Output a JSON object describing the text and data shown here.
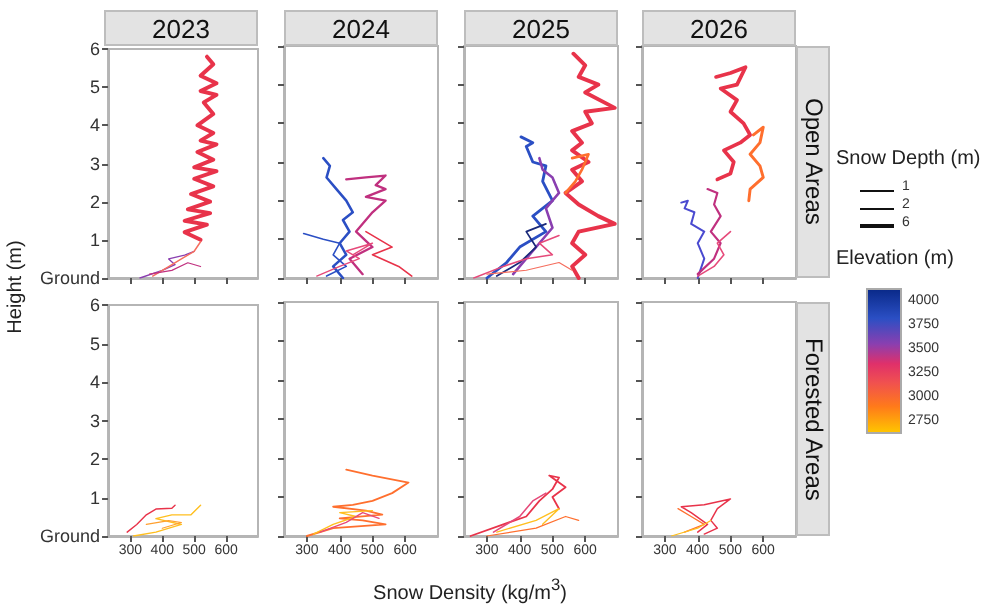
{
  "chart_data": [
    {
      "type": "line",
      "title": "2023",
      "ylabel": "Height (m)",
      "xlim": [
        230,
        700
      ],
      "xticks": [
        300,
        400,
        500,
        600
      ],
      "ylim": [
        0,
        6
      ],
      "yticks": [
        {
          "value": 0,
          "label": "Ground"
        },
        1,
        2,
        3,
        4,
        5,
        6
      ],
      "tick_labels": "y",
      "series": [
        {
          "color": "#e8334a",
          "x": [
            540,
            560,
            520,
            570,
            520,
            570,
            530,
            560,
            510,
            560,
            520,
            570,
            510,
            560,
            500,
            570,
            500,
            560,
            490,
            550,
            480,
            550,
            470,
            540,
            470,
            520
          ],
          "values": [
            5.8,
            5.6,
            5.3,
            5.1,
            4.9,
            4.8,
            4.6,
            4.3,
            4.0,
            3.8,
            3.6,
            3.5,
            3.3,
            3.1,
            2.9,
            2.8,
            2.6,
            2.4,
            2.2,
            2.0,
            1.8,
            1.7,
            1.5,
            1.4,
            1.2,
            1.0
          ]
        },
        {
          "color": "#8a3fb0",
          "x": [
            330,
            400,
            440,
            420,
            470,
            500
          ],
          "values": [
            0,
            0.2,
            0.35,
            0.5,
            0.6,
            0.7
          ]
        },
        {
          "color": "#f56e5e",
          "x": [
            370,
            420,
            460,
            500,
            520
          ],
          "values": [
            0.05,
            0.3,
            0.5,
            0.7,
            0.95
          ]
        },
        {
          "color": "#c0307f",
          "x": [
            360,
            430,
            480,
            520
          ],
          "values": [
            0.1,
            0.2,
            0.4,
            0.3
          ]
        }
      ]
    },
    {
      "type": "line",
      "title": "2024",
      "xlim": [
        230,
        700
      ],
      "xticks": [
        300,
        400,
        500,
        600
      ],
      "ylim": [
        0,
        6
      ],
      "yticks": [
        0,
        1,
        2,
        3,
        4,
        5,
        6
      ],
      "tick_labels": false,
      "series": [
        {
          "color": "#2b4fc4",
          "x": [
            350,
            370,
            360,
            390,
            420,
            440,
            410,
            430,
            400,
            420,
            380,
            410
          ],
          "values": [
            3.1,
            2.9,
            2.6,
            2.3,
            2.0,
            1.7,
            1.5,
            1.2,
            0.9,
            0.6,
            0.3,
            0
          ]
        },
        {
          "color": "#c0307f",
          "x": [
            420,
            480,
            540,
            510,
            540,
            480,
            540,
            500,
            450,
            500,
            430,
            470
          ],
          "values": [
            2.55,
            2.6,
            2.65,
            2.4,
            2.3,
            2.1,
            2.0,
            1.7,
            1.2,
            0.8,
            0.5,
            0.1
          ]
        },
        {
          "color": "#2b4fc4",
          "x": [
            290,
            350,
            400,
            380,
            420,
            360
          ],
          "values": [
            1.15,
            1.0,
            0.9,
            0.6,
            0.3,
            0.05
          ]
        },
        {
          "color": "#e8334a",
          "x": [
            480,
            560,
            500,
            580,
            620
          ],
          "values": [
            1.2,
            0.8,
            0.6,
            0.3,
            0.05
          ]
        },
        {
          "color": "#e64a7a",
          "x": [
            330,
            400,
            460,
            420,
            500,
            440
          ],
          "values": [
            0.05,
            0.3,
            0.5,
            0.7,
            0.9,
            0.6
          ]
        }
      ]
    },
    {
      "type": "line",
      "title": "2025",
      "xlim": [
        230,
        700
      ],
      "xticks": [
        300,
        400,
        500,
        600
      ],
      "ylim": [
        0,
        6
      ],
      "yticks": [
        0,
        1,
        2,
        3,
        4,
        5,
        6
      ],
      "tick_labels": false,
      "series": [
        {
          "color": "#e8334a",
          "x": [
            564,
            600,
            580,
            640,
            600,
            690,
            600,
            620,
            560,
            590,
            560,
            610,
            560,
            590,
            540,
            580,
            640,
            690,
            580,
            560,
            600,
            560,
            580
          ],
          "values": [
            5.8,
            5.5,
            5.2,
            5.0,
            4.8,
            4.4,
            4.3,
            4.0,
            3.8,
            3.5,
            3.3,
            3.0,
            2.8,
            2.5,
            2.2,
            1.9,
            1.6,
            1.4,
            1.2,
            0.9,
            0.6,
            0.3,
            0
          ]
        },
        {
          "color": "#ff6f2e",
          "x": [
            560,
            610,
            590,
            570,
            540
          ],
          "values": [
            3.1,
            3.2,
            2.8,
            2.5,
            2.2
          ]
        },
        {
          "color": "#2b4fc4",
          "x": [
            404,
            440,
            420,
            440,
            480,
            470,
            500,
            440,
            480,
            400,
            360,
            300
          ],
          "values": [
            3.65,
            3.5,
            3.4,
            3.0,
            2.9,
            2.5,
            2.0,
            1.6,
            1.2,
            0.8,
            0.4,
            0
          ]
        },
        {
          "color": "#8a3fb0",
          "x": [
            460,
            470,
            500,
            520,
            480,
            500,
            460,
            420,
            380
          ],
          "values": [
            3.1,
            2.8,
            2.6,
            2.2,
            1.8,
            1.3,
            0.9,
            0.5,
            0.1
          ]
        },
        {
          "color": "#1a2a7a",
          "x": [
            330,
            400,
            450,
            420,
            480
          ],
          "values": [
            0.05,
            0.4,
            0.8,
            1.2,
            1.4
          ]
        },
        {
          "color": "#e64a7a",
          "x": [
            260,
            350,
            420,
            500,
            460,
            520
          ],
          "values": [
            0,
            0.3,
            0.5,
            0.6,
            0.9,
            1.1
          ]
        },
        {
          "color": "#f56e5e",
          "x": [
            300,
            420,
            520,
            560
          ],
          "values": [
            0.1,
            0.2,
            0.4,
            0.2
          ]
        }
      ]
    },
    {
      "type": "line",
      "title": "2026",
      "annotations": [
        "Open Areas"
      ],
      "legend_title": "Snow Depth (m)",
      "size_legend": [
        "1",
        "2",
        "6"
      ],
      "clabel": "Elevation (m)",
      "clim": [
        2650,
        4160
      ],
      "cticks": [
        2750,
        3000,
        3250,
        3500,
        3750,
        4000
      ],
      "xlim": [
        230,
        700
      ],
      "xticks": [
        300,
        400,
        500,
        600
      ],
      "ylim": [
        0,
        6
      ],
      "yticks": [
        0,
        1,
        2,
        3,
        4,
        5,
        6
      ],
      "tick_labels": false,
      "series": [
        {
          "color": "#e8334a",
          "x": [
            456,
            500,
            546,
            520,
            470,
            520,
            500,
            540,
            560,
            530,
            480,
            510,
            500,
            460
          ],
          "values": [
            5.2,
            5.3,
            5.45,
            5.0,
            4.9,
            4.6,
            4.3,
            4.0,
            3.7,
            3.5,
            3.3,
            3.0,
            2.7,
            2.55
          ]
        },
        {
          "color": "#ff6f2e",
          "x": [
            570,
            600,
            590,
            560,
            590,
            600,
            560,
            556
          ],
          "values": [
            3.7,
            3.9,
            3.5,
            3.2,
            2.9,
            2.6,
            2.3,
            2.0
          ]
        },
        {
          "color": "#4a4ad0",
          "x": [
            350,
            370,
            360,
            390,
            380,
            420,
            400,
            420,
            400
          ],
          "values": [
            1.95,
            2.0,
            1.8,
            1.7,
            1.4,
            1.2,
            0.9,
            0.5,
            0
          ]
        },
        {
          "color": "#c0307f",
          "x": [
            430,
            460,
            450,
            470,
            440,
            470,
            450,
            400
          ],
          "values": [
            2.3,
            2.2,
            1.9,
            1.6,
            1.2,
            0.9,
            0.5,
            0.1
          ]
        },
        {
          "color": "#e64a7a",
          "x": [
            400,
            450,
            480,
            460,
            500
          ],
          "values": [
            0.05,
            0.3,
            0.6,
            0.9,
            1.2
          ]
        }
      ]
    },
    {
      "type": "line",
      "xlabel": "Snow Density (kg/m$^{3}$)",
      "xlim": [
        230,
        700
      ],
      "xticks": [
        300,
        400,
        500,
        600
      ],
      "ylim": [
        0,
        6
      ],
      "yticks": [
        {
          "value": 0,
          "label": "Ground"
        },
        1,
        2,
        3,
        4,
        5,
        6
      ],
      "series": [
        {
          "color": "#e8334a",
          "x": [
            290,
            320,
            350,
            380,
            430,
            440
          ],
          "values": [
            0.1,
            0.3,
            0.55,
            0.7,
            0.72,
            0.8
          ]
        },
        {
          "color": "#ffbf1f",
          "x": [
            310,
            380,
            460,
            380,
            430,
            490,
            520
          ],
          "values": [
            0,
            0.1,
            0.3,
            0.45,
            0.55,
            0.55,
            0.8
          ]
        },
        {
          "color": "#ffa030",
          "x": [
            350,
            420,
            460,
            400
          ],
          "values": [
            0.3,
            0.4,
            0.35,
            0.2
          ]
        }
      ]
    },
    {
      "type": "line",
      "xlim": [
        230,
        700
      ],
      "xticks": [
        300,
        400,
        500,
        600
      ],
      "ylim": [
        0,
        6
      ],
      "yticks": [
        0,
        1,
        2,
        3,
        4,
        5,
        6
      ],
      "tick_labels": "x",
      "series": [
        {
          "color": "#ff6f2e",
          "x": [
            420,
            500,
            610,
            560,
            500,
            440,
            380,
            480,
            530,
            400,
            470,
            540,
            380,
            300
          ],
          "values": [
            1.7,
            1.55,
            1.37,
            1.1,
            0.9,
            0.8,
            0.75,
            0.65,
            0.55,
            0.45,
            0.4,
            0.3,
            0.2,
            0
          ]
        },
        {
          "color": "#ffbf1f",
          "x": [
            320,
            380,
            450,
            400,
            500
          ],
          "values": [
            0.05,
            0.3,
            0.5,
            0.6,
            0.65
          ]
        },
        {
          "color": "#e64a7a",
          "x": [
            340,
            420,
            470,
            520
          ],
          "values": [
            0.1,
            0.35,
            0.6,
            0.45
          ]
        }
      ]
    },
    {
      "type": "line",
      "xlim": [
        230,
        700
      ],
      "xticks": [
        300,
        400,
        500,
        600
      ],
      "ylim": [
        0,
        6
      ],
      "yticks": [
        0,
        1,
        2,
        3,
        4,
        5,
        6
      ],
      "tick_labels": "x",
      "series": [
        {
          "color": "#e8334a",
          "x": [
            250,
            350,
            420,
            460,
            500,
            520,
            490,
            540,
            500,
            520
          ],
          "values": [
            0,
            0.3,
            0.5,
            0.9,
            1.2,
            1.5,
            1.55,
            1.25,
            1.0,
            0.7
          ]
        },
        {
          "color": "#e64a7a",
          "x": [
            320,
            400,
            440,
            480
          ],
          "values": [
            0.1,
            0.5,
            0.9,
            1.1
          ]
        },
        {
          "color": "#ff6f2e",
          "x": [
            300,
            450,
            540,
            580
          ],
          "values": [
            0,
            0.2,
            0.5,
            0.4
          ]
        },
        {
          "color": "#ffbf1f",
          "x": [
            330,
            450,
            520,
            470
          ],
          "values": [
            0.1,
            0.4,
            0.7,
            0.3
          ]
        }
      ]
    },
    {
      "type": "line",
      "annotations": [
        "Forested Areas"
      ],
      "xlim": [
        230,
        700
      ],
      "xticks": [
        300,
        400,
        500,
        600
      ],
      "ylim": [
        0,
        6
      ],
      "yticks": [
        0,
        1,
        2,
        3,
        4,
        5,
        6
      ],
      "tick_labels": "x",
      "series": [
        {
          "color": "#e8334a",
          "x": [
            400,
            430,
            380,
            350,
            420,
            500,
            460,
            440,
            460,
            420
          ],
          "values": [
            0.1,
            0.3,
            0.6,
            0.75,
            0.8,
            0.95,
            0.7,
            0.4,
            0.2,
            0.05
          ]
        },
        {
          "color": "#ff6f2e",
          "x": [
            340,
            380,
            420,
            360
          ],
          "values": [
            0.7,
            0.5,
            0.3,
            0.1
          ]
        },
        {
          "color": "#ffbf1f",
          "x": [
            320,
            400,
            440
          ],
          "values": [
            0,
            0.2,
            0.4
          ]
        }
      ]
    }
  ]
}
